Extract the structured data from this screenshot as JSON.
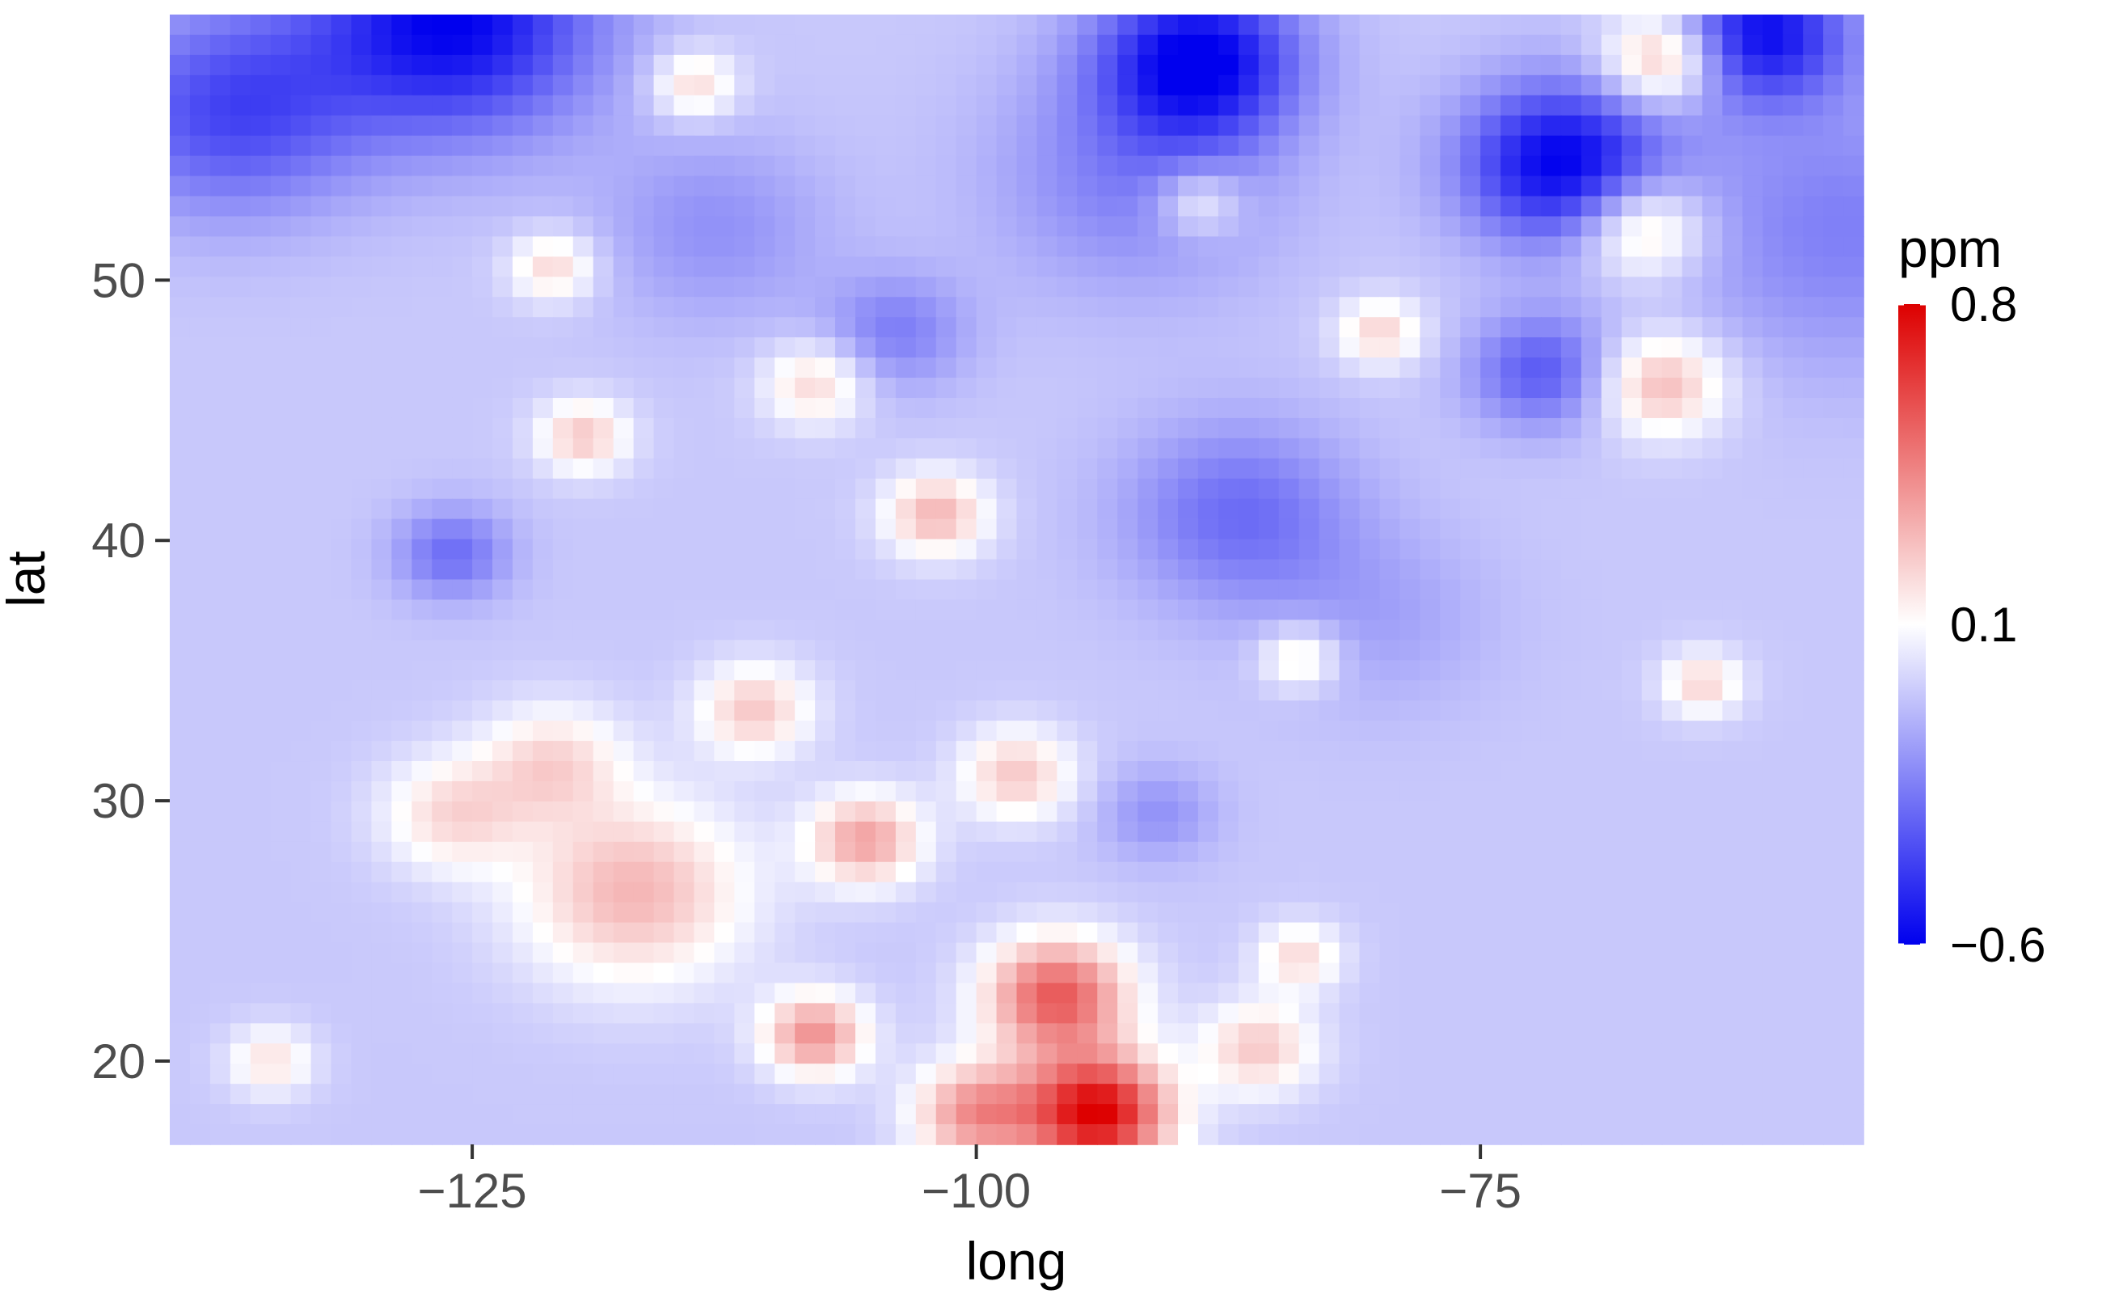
{
  "chart_data": {
    "type": "heatmap",
    "title": "",
    "xlabel": "long",
    "ylabel": "lat",
    "xlim": [
      -140,
      -56
    ],
    "ylim": [
      16.8,
      60.2
    ],
    "x_ticks": [
      -125,
      -100,
      -75
    ],
    "x_tick_labels": [
      "−125",
      "−100",
      "−75"
    ],
    "y_ticks": [
      20,
      30,
      40,
      50
    ],
    "y_tick_labels": [
      "20",
      "30",
      "40",
      "50"
    ],
    "grid": false,
    "legend": {
      "title": "ppm",
      "position": "right",
      "range": [
        -0.6,
        0.8
      ],
      "breaks": [
        0.8,
        0.1,
        -0.6
      ],
      "break_labels": [
        "0.8",
        "0.1",
        "−0.6"
      ],
      "colors": {
        "low": "#0000ee",
        "mid": "#ffffff",
        "high": "#dd0000"
      }
    },
    "baseline_value": -0.05,
    "features": [
      {
        "long": -126,
        "lat": 60,
        "value": -0.6,
        "spread": 5
      },
      {
        "long": -89,
        "lat": 58.5,
        "value": -0.6,
        "spread": 3.5
      },
      {
        "long": -71,
        "lat": 54.5,
        "value": -0.6,
        "spread": 3.5
      },
      {
        "long": -61,
        "lat": 59.5,
        "value": -0.55,
        "spread": 3
      },
      {
        "long": -137,
        "lat": 56.5,
        "value": -0.4,
        "spread": 4.5
      },
      {
        "long": -57,
        "lat": 52,
        "value": -0.25,
        "spread": 6
      },
      {
        "long": -92,
        "lat": 54,
        "value": -0.25,
        "spread": 5
      },
      {
        "long": -113,
        "lat": 52,
        "value": -0.2,
        "spread": 4
      },
      {
        "long": -104,
        "lat": 48,
        "value": -0.25,
        "spread": 2.5
      },
      {
        "long": -72,
        "lat": 46.5,
        "value": -0.35,
        "spread": 2.5
      },
      {
        "long": -87,
        "lat": 41,
        "value": -0.3,
        "spread": 4
      },
      {
        "long": -126,
        "lat": 39.5,
        "value": -0.3,
        "spread": 2
      },
      {
        "long": -80,
        "lat": 37,
        "value": -0.15,
        "spread": 4
      },
      {
        "long": -91,
        "lat": 29.5,
        "value": -0.2,
        "spread": 2
      },
      {
        "long": -67,
        "lat": 52,
        "value": 0.3,
        "spread": 2.2
      },
      {
        "long": -66,
        "lat": 46,
        "value": 0.3,
        "spread": 2.2
      },
      {
        "long": -66,
        "lat": 58.5,
        "value": 0.35,
        "spread": 2
      },
      {
        "long": -80,
        "lat": 48,
        "value": 0.22,
        "spread": 1.5
      },
      {
        "long": -89,
        "lat": 53,
        "value": 0.18,
        "spread": 1.5
      },
      {
        "long": -108,
        "lat": 46,
        "value": 0.22,
        "spread": 1.8
      },
      {
        "long": -119.5,
        "lat": 44,
        "value": 0.25,
        "spread": 1.6
      },
      {
        "long": -121,
        "lat": 50.5,
        "value": 0.22,
        "spread": 1.5
      },
      {
        "long": -114,
        "lat": 57.5,
        "value": 0.22,
        "spread": 1.5
      },
      {
        "long": -102,
        "lat": 41,
        "value": 0.3,
        "spread": 1.8
      },
      {
        "long": -117,
        "lat": 26.5,
        "value": 0.3,
        "spread": 4
      },
      {
        "long": -121,
        "lat": 31.5,
        "value": 0.2,
        "spread": 2.5
      },
      {
        "long": -126,
        "lat": 29.5,
        "value": 0.2,
        "spread": 2.5
      },
      {
        "long": -111,
        "lat": 33.5,
        "value": 0.25,
        "spread": 2
      },
      {
        "long": -105.5,
        "lat": 28.5,
        "value": 0.35,
        "spread": 2
      },
      {
        "long": -98,
        "lat": 31,
        "value": 0.25,
        "spread": 2
      },
      {
        "long": -108,
        "lat": 21,
        "value": 0.4,
        "spread": 1.8
      },
      {
        "long": -96,
        "lat": 22.5,
        "value": 0.55,
        "spread": 2.5
      },
      {
        "long": -94,
        "lat": 18,
        "value": 0.8,
        "spread": 2.5
      },
      {
        "long": -100,
        "lat": 18,
        "value": 0.4,
        "spread": 2.2
      },
      {
        "long": -86,
        "lat": 20.5,
        "value": 0.25,
        "spread": 2
      },
      {
        "long": -84,
        "lat": 24,
        "value": 0.2,
        "spread": 1.5
      },
      {
        "long": -84,
        "lat": 35.5,
        "value": 0.2,
        "spread": 1.4
      },
      {
        "long": -64,
        "lat": 34.5,
        "value": 0.22,
        "spread": 1.4
      },
      {
        "long": -135,
        "lat": 20,
        "value": 0.18,
        "spread": 1.5
      }
    ]
  }
}
